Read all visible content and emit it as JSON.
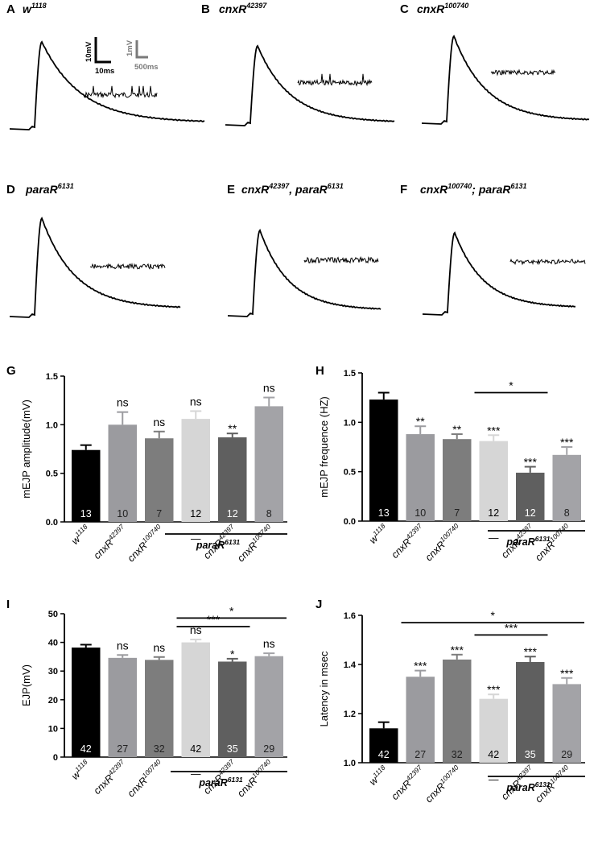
{
  "colors": [
    "#000000",
    "#9b9b9f",
    "#7d7d7d",
    "#d6d6d6",
    "#5f5f5f",
    "#a3a3a7"
  ],
  "traces": {
    "panels": [
      {
        "letter": "A",
        "base": "w",
        "sup": "1118"
      },
      {
        "letter": "B",
        "base": "cnxR",
        "sup": "42397"
      },
      {
        "letter": "C",
        "base": "cnxR",
        "sup": "100740"
      },
      {
        "letter": "D",
        "base": "paraR",
        "sup": "6131"
      },
      {
        "letter": "E",
        "base": "cnxR",
        "sup": "42397",
        "sep": ", ",
        "base2": "paraR",
        "sup2": "6131"
      },
      {
        "letter": "F",
        "base": "cnxR",
        "sup": "100740",
        "sep": "; ",
        "base2": "paraR",
        "sup2": "6131"
      }
    ],
    "scalebar_black": {
      "v": "10mV",
      "t": "10ms"
    },
    "scalebar_gray": {
      "v": "1mV",
      "t": "500ms"
    }
  },
  "chart_data": [
    {
      "letter": "G",
      "type": "bar",
      "ylabel": "mEJP amplitude(mV)",
      "ylim": [
        0,
        1.5
      ],
      "yticks": [
        "0.0",
        "0.5",
        "1.0",
        "1.5"
      ],
      "categories": [
        "w1118",
        "cnxR42397",
        "cnxR100740",
        "—",
        "cnxR42397",
        "cnxR100740"
      ],
      "values": [
        0.74,
        1.0,
        0.86,
        1.06,
        0.87,
        1.19
      ],
      "errors": [
        0.05,
        0.13,
        0.07,
        0.08,
        0.04,
        0.09
      ],
      "n": [
        "13",
        "10",
        "7",
        "12",
        "12",
        "8"
      ],
      "sig": [
        "",
        "ns",
        "ns",
        "ns",
        "**",
        "ns"
      ],
      "group_label": "paraR6131",
      "brackets": []
    },
    {
      "letter": "H",
      "type": "bar",
      "ylabel": "mEJP frequence (HZ)",
      "ylim": [
        0,
        1.5
      ],
      "yticks": [
        "0.0",
        "0.5",
        "1.0",
        "1.5"
      ],
      "categories": [
        "w1118",
        "cnxR42397",
        "cnxR100740",
        "—",
        "cnxR42397",
        "cnxR100740"
      ],
      "values": [
        1.23,
        0.88,
        0.83,
        0.81,
        0.49,
        0.67
      ],
      "errors": [
        0.07,
        0.08,
        0.05,
        0.06,
        0.06,
        0.08
      ],
      "n": [
        "13",
        "10",
        "7",
        "12",
        "12",
        "8"
      ],
      "sig": [
        "",
        "**",
        "**",
        "***",
        "***",
        "***"
      ],
      "group_label": "paraR6131",
      "brackets": [
        {
          "from": 3,
          "to": 4,
          "label": "*",
          "y": 1.3
        }
      ]
    },
    {
      "letter": "I",
      "type": "bar",
      "ylabel": "EJP(mV)",
      "ylim": [
        0,
        50
      ],
      "yticks": [
        "0",
        "10",
        "20",
        "30",
        "40",
        "50"
      ],
      "categories": [
        "w1118",
        "cnxR42397",
        "cnxR100740",
        "—",
        "cnxR42397",
        "cnxR100740"
      ],
      "values": [
        38.2,
        34.6,
        33.9,
        40.0,
        33.3,
        35.2
      ],
      "errors": [
        1.0,
        1.0,
        1.0,
        1.0,
        1.0,
        1.0
      ],
      "n": [
        "42",
        "27",
        "32",
        "42",
        "35",
        "29"
      ],
      "sig": [
        "",
        "ns",
        "ns",
        "ns",
        "*",
        "ns"
      ],
      "group_label": "paraR6131",
      "brackets": [
        {
          "from": 3,
          "to": 5,
          "label": "*",
          "y": 48.5
        },
        {
          "from": 3,
          "to": 4,
          "label": "***",
          "y": 45.5
        }
      ]
    },
    {
      "letter": "J",
      "type": "bar",
      "ylabel": "Latency in msec",
      "ylim": [
        1.0,
        1.6
      ],
      "yticks": [
        "1.0",
        "1.2",
        "1.4",
        "1.6"
      ],
      "categories": [
        "w1118",
        "cnxR42397",
        "cnxR100740",
        "—",
        "cnxR42397",
        "cnxR100740"
      ],
      "values": [
        1.14,
        1.35,
        1.42,
        1.26,
        1.41,
        1.32
      ],
      "errors": [
        0.025,
        0.025,
        0.02,
        0.018,
        0.022,
        0.025
      ],
      "n": [
        "42",
        "27",
        "32",
        "42",
        "35",
        "29"
      ],
      "sig": [
        "",
        "***",
        "***",
        "***",
        "***",
        "***"
      ],
      "group_label": "paraR6131",
      "brackets": [
        {
          "from": 1,
          "to": 5,
          "label": "*",
          "y": 1.57
        },
        {
          "from": 3,
          "to": 4,
          "label": "***",
          "y": 1.52
        }
      ]
    }
  ]
}
